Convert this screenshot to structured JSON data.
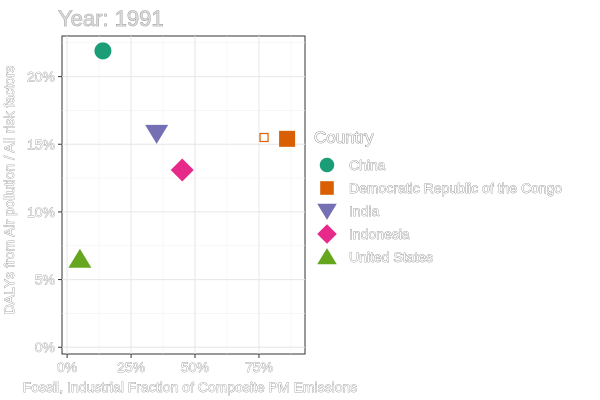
{
  "chart_data": {
    "type": "scatter",
    "title": "Year: 1991",
    "xlabel": "Fossil, Industrial Fraction of Composite PM Emissions",
    "ylabel": "DALYs from Air pollution / All risk factors",
    "xlim": [
      -0.02,
      0.93
    ],
    "ylim": [
      -0.005,
      0.23
    ],
    "x_ticks": [
      0,
      0.25,
      0.5,
      0.75
    ],
    "x_tick_labels": [
      "0%",
      "25%",
      "50%",
      "75%"
    ],
    "y_ticks": [
      0,
      0.05,
      0.1,
      0.15,
      0.2
    ],
    "y_tick_labels": [
      "0%",
      "5%",
      "10%",
      "15%",
      "20%"
    ],
    "grid": true,
    "legend_title": "Country",
    "legend_position": "right",
    "series": [
      {
        "name": "China",
        "x": 0.14,
        "y": 0.219,
        "color": "#1b9e77",
        "shape": "circle"
      },
      {
        "name": "Democratic Republic of the Congo",
        "x": 0.86,
        "y": 0.154,
        "color": "#d95f02",
        "shape": "square"
      },
      {
        "name": "India",
        "x": 0.35,
        "y": 0.158,
        "color": "#7570b3",
        "shape": "triangle-down"
      },
      {
        "name": "Indonesia",
        "x": 0.45,
        "y": 0.131,
        "color": "#e7298a",
        "shape": "diamond"
      },
      {
        "name": "United States",
        "x": 0.05,
        "y": 0.065,
        "color": "#66a61e",
        "shape": "triangle-up"
      }
    ],
    "annotations": [
      {
        "type": "hollow-square-marker",
        "x": 0.77,
        "y": 0.155,
        "color": "#d95f02"
      }
    ]
  }
}
